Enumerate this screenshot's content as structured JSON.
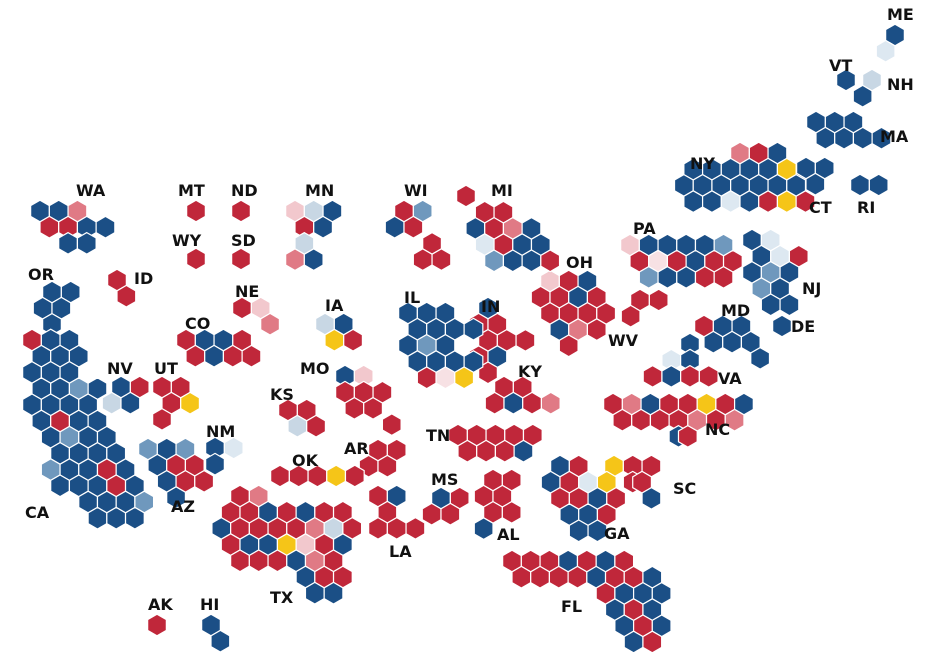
{
  "colors": {
    "D": "#1b4f86",
    "R": "#c0273a",
    "LD": "#6f98bd",
    "PD": "#c8d7e4",
    "ED": "#dde8f1",
    "LR": "#e07a85",
    "PR": "#f2c8cd",
    "ER": "#f7e1e4",
    "T": "#f5c518"
  },
  "states": {
    "ME": {
      "label": "ME",
      "seats": [
        "D",
        "ED"
      ]
    },
    "VT": {
      "label": "VT",
      "seats": [
        "D"
      ]
    },
    "NH": {
      "label": "NH",
      "seats": [
        "PD",
        "D"
      ]
    },
    "MA": {
      "label": "MA",
      "seats": [
        "D",
        "D",
        "D",
        "D",
        "D",
        "D",
        "D",
        "D",
        "D"
      ]
    },
    "CT": {
      "label": "CT",
      "seats": [
        "D",
        "D",
        "D",
        "D",
        "D"
      ]
    },
    "RI": {
      "label": "RI",
      "seats": [
        "D",
        "D"
      ]
    },
    "NY": {
      "label": "NY",
      "seats": [
        "LR",
        "R",
        "D",
        "D",
        "D",
        "D",
        "D",
        "D",
        "T",
        "D",
        "D",
        "D",
        "D",
        "D",
        "D",
        "D",
        "D",
        "D",
        "ED",
        "D",
        "R",
        "T",
        "R",
        "PR",
        "D",
        "LR",
        "D"
      ]
    },
    "PA": {
      "label": "PA",
      "seats": [
        "PR",
        "D",
        "D",
        "D",
        "D",
        "LD",
        "R",
        "ER",
        "R",
        "D",
        "R",
        "R",
        "LD",
        "D",
        "D",
        "R",
        "R",
        "R"
      ]
    },
    "NJ": {
      "label": "NJ",
      "seats": [
        "D",
        "ED",
        "D",
        "ED",
        "R",
        "D",
        "LD",
        "D",
        "LD",
        "D",
        "D",
        "D"
      ]
    },
    "DE": {
      "label": "DE",
      "seats": [
        "D"
      ]
    },
    "MD": {
      "label": "MD",
      "seats": [
        "R",
        "D",
        "D",
        "D",
        "D",
        "D",
        "D",
        "D"
      ]
    },
    "VA": {
      "label": "VA",
      "seats": [
        "D",
        "ED",
        "D",
        "D",
        "R",
        "D",
        "R",
        "R",
        "D",
        "R",
        "R"
      ]
    },
    "WV": {
      "label": "WV",
      "seats": [
        "R",
        "R",
        "R"
      ]
    },
    "NC": {
      "label": "NC",
      "seats": [
        "R",
        "LR",
        "D",
        "R",
        "R",
        "T",
        "R",
        "D",
        "R",
        "R",
        "R",
        "R",
        "LR"
      ]
    },
    "SC": {
      "label": "SC",
      "seats": [
        "T",
        "R",
        "R",
        "R",
        "R",
        "D",
        "R"
      ]
    },
    "GA": {
      "label": "GA",
      "seats": [
        "D",
        "R",
        "D",
        "R",
        "ED",
        "T",
        "R",
        "R",
        "D",
        "R",
        "D",
        "D",
        "R",
        "D"
      ]
    },
    "FL": {
      "label": "FL",
      "seats": [
        "R",
        "R",
        "R",
        "D",
        "R",
        "D",
        "R",
        "R",
        "R",
        "R",
        "R",
        "D",
        "R",
        "R",
        "D",
        "R",
        "D",
        "D",
        "D",
        "D",
        "R",
        "D",
        "D",
        "R",
        "D",
        "D",
        "R"
      ]
    },
    "AL": {
      "label": "AL",
      "seats": [
        "R",
        "R",
        "R",
        "R",
        "R",
        "R",
        "D"
      ]
    },
    "MS": {
      "label": "MS",
      "seats": [
        "D",
        "R",
        "R",
        "R"
      ]
    },
    "TN": {
      "label": "TN",
      "seats": [
        "R",
        "R",
        "R",
        "R",
        "R",
        "R",
        "R",
        "R",
        "D"
      ]
    },
    "KY": {
      "label": "KY",
      "seats": [
        "R",
        "R",
        "R",
        "D",
        "R",
        "LR"
      ]
    },
    "OH": {
      "label": "OH",
      "seats": [
        "PR",
        "R",
        "D",
        "R",
        "R",
        "D",
        "R",
        "R",
        "R",
        "R",
        "R",
        "D",
        "LR",
        "R",
        "R",
        "D"
      ]
    },
    "MI": {
      "label": "MI",
      "seats": [
        "R",
        "R",
        "R",
        "D",
        "R",
        "LR",
        "D",
        "ED",
        "R",
        "D",
        "D",
        "LD",
        "D",
        "D"
      ]
    },
    "IN": {
      "label": "IN",
      "seats": [
        "D",
        "R",
        "R",
        "R",
        "R",
        "R",
        "R",
        "D",
        "R"
      ]
    },
    "IL": {
      "label": "IL",
      "seats": [
        "D",
        "D",
        "D",
        "D",
        "D",
        "D",
        "D",
        "D",
        "LD",
        "D",
        "D",
        "D",
        "D",
        "D",
        "R",
        "ER",
        "T",
        "R",
        "R"
      ]
    },
    "WI": {
      "label": "WI",
      "seats": [
        "R",
        "LD",
        "D",
        "R",
        "R",
        "R",
        "R",
        "R"
      ]
    },
    "MN": {
      "label": "MN",
      "seats": [
        "PR",
        "PD",
        "D",
        "R",
        "D",
        "PD",
        "LR",
        "D"
      ]
    },
    "IA": {
      "label": "IA",
      "seats": [
        "PD",
        "D",
        "T",
        "R"
      ]
    },
    "MO": {
      "label": "MO",
      "seats": [
        "D",
        "PR",
        "R",
        "R",
        "R",
        "R",
        "R",
        "R"
      ]
    },
    "AR": {
      "label": "AR",
      "seats": [
        "R",
        "R",
        "R",
        "R"
      ]
    },
    "LA": {
      "label": "LA",
      "seats": [
        "R",
        "D",
        "R",
        "R",
        "R",
        "R"
      ]
    },
    "ND": {
      "label": "ND",
      "seats": [
        "R"
      ]
    },
    "SD": {
      "label": "SD",
      "seats": [
        "R"
      ]
    },
    "NE": {
      "label": "NE",
      "seats": [
        "R",
        "PR",
        "LR"
      ]
    },
    "KS": {
      "label": "KS",
      "seats": [
        "R",
        "R",
        "PD",
        "R"
      ]
    },
    "OK": {
      "label": "OK",
      "seats": [
        "R",
        "R",
        "R",
        "T",
        "R"
      ]
    },
    "TX": {
      "label": "TX",
      "seats": [
        "R",
        "LR",
        "R",
        "R",
        "D",
        "R",
        "D",
        "R",
        "R",
        "D",
        "R",
        "R",
        "R",
        "R",
        "LR",
        "PD",
        "R",
        "R",
        "D",
        "D",
        "T",
        "PR",
        "R",
        "D",
        "R",
        "R",
        "R",
        "D",
        "LR",
        "R",
        "D",
        "R",
        "R",
        "D",
        "D",
        "R",
        "D",
        "PR",
        "LD",
        "D",
        "R"
      ]
    },
    "NM": {
      "label": "NM",
      "seats": [
        "D",
        "ED",
        "D"
      ]
    },
    "CO": {
      "label": "CO",
      "seats": [
        "R",
        "D",
        "D",
        "R",
        "R",
        "D",
        "R"
      ]
    },
    "WY": {
      "label": "WY",
      "seats": [
        "R"
      ]
    },
    "MT": {
      "label": "MT",
      "seats": [
        "R"
      ]
    },
    "ID": {
      "label": "ID",
      "seats": [
        "R",
        "R"
      ]
    },
    "UT": {
      "label": "UT",
      "seats": [
        "R",
        "R",
        "R",
        "T"
      ]
    },
    "AZ": {
      "label": "AZ",
      "seats": [
        "LD",
        "D",
        "LD",
        "D",
        "R",
        "R",
        "D",
        "R",
        "R",
        "D"
      ]
    },
    "NV": {
      "label": "NV",
      "seats": [
        "D",
        "R",
        "PD",
        "D"
      ]
    },
    "WA": {
      "label": "WA",
      "seats": [
        "D",
        "D",
        "LR",
        "R",
        "R",
        "D",
        "D",
        "D",
        "D",
        "D"
      ]
    },
    "OR": {
      "label": "OR",
      "seats": [
        "D",
        "D",
        "D",
        "D",
        "D"
      ]
    },
    "CA": {
      "label": "CA",
      "seats": [
        "R",
        "D",
        "D",
        "D",
        "D",
        "D",
        "D",
        "D",
        "D",
        "D",
        "D",
        "LD",
        "D",
        "D",
        "D",
        "D",
        "D",
        "D",
        "R",
        "D",
        "D",
        "D",
        "LD",
        "D",
        "D",
        "D",
        "D",
        "D",
        "D",
        "LD",
        "D",
        "D",
        "R",
        "D",
        "D",
        "D",
        "D",
        "R",
        "D",
        "D",
        "D",
        "D",
        "LD",
        "D",
        "D",
        "D",
        "D",
        "R",
        "D",
        "D",
        "LD",
        "D",
        "D"
      ]
    },
    "AK": {
      "label": "AK",
      "seats": [
        "R"
      ]
    },
    "HI": {
      "label": "HI",
      "seats": [
        "D",
        "D"
      ]
    }
  }
}
